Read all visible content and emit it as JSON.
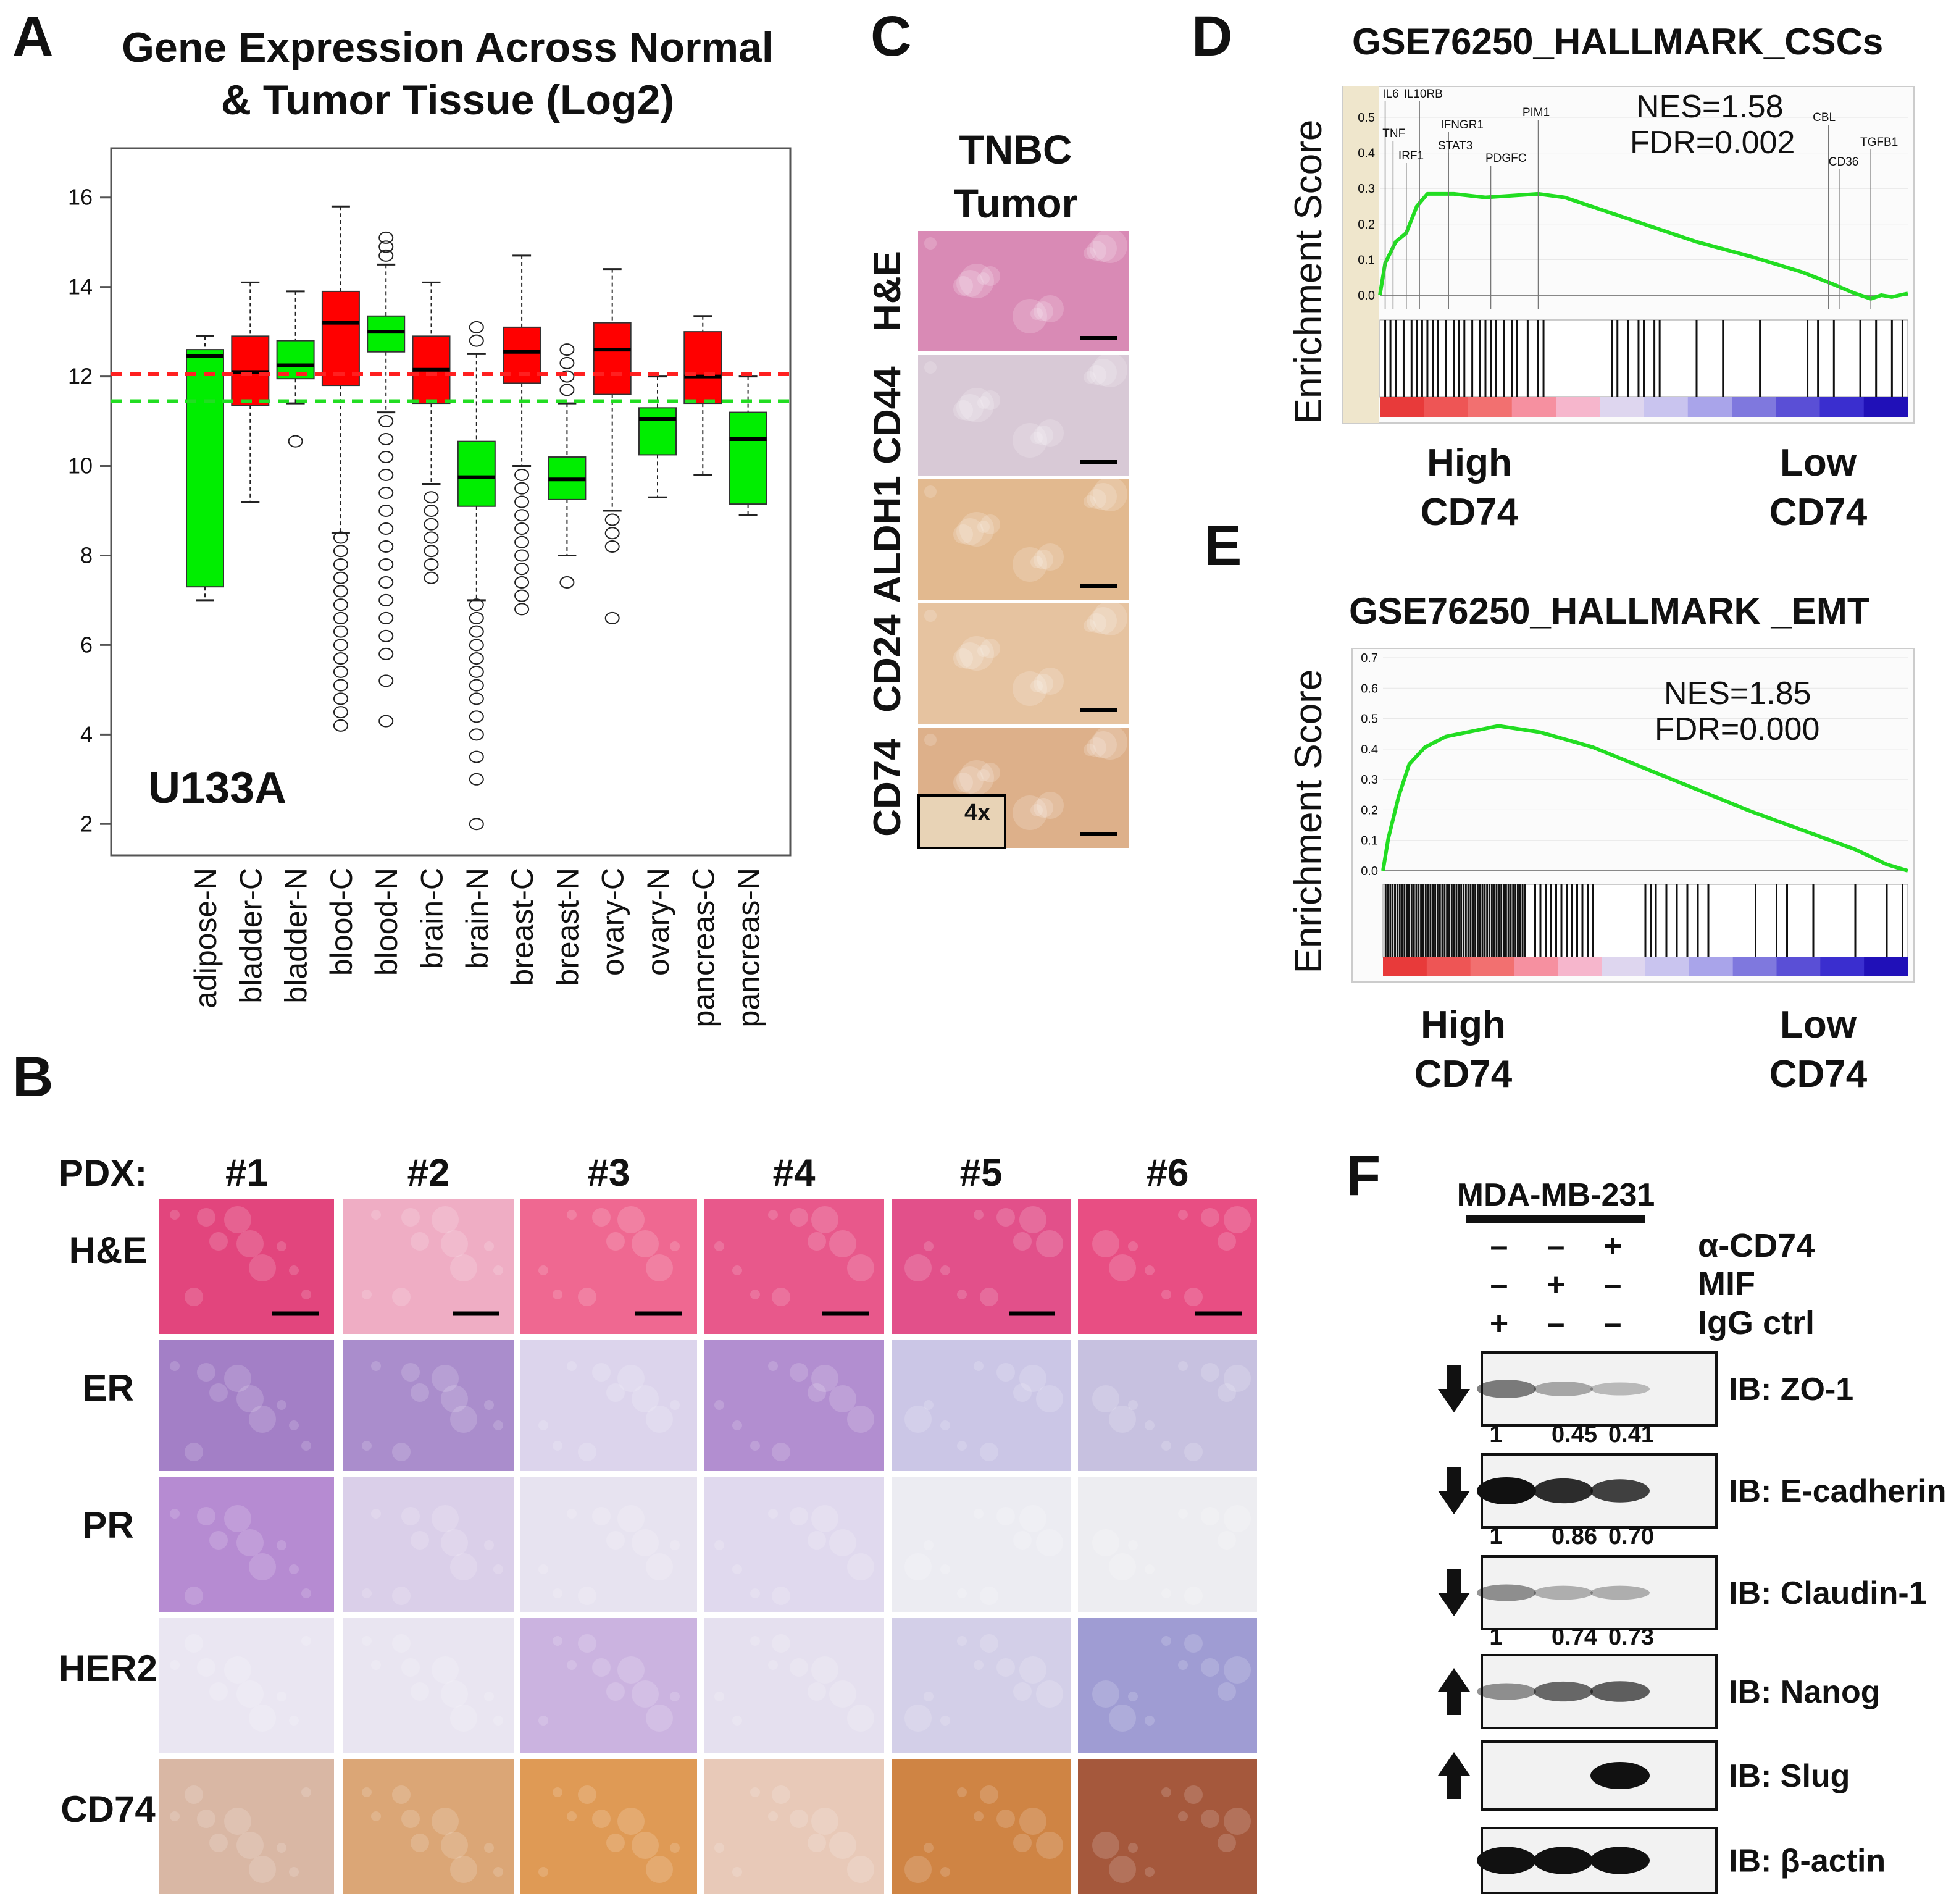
{
  "panel_letters": {
    "a": "A",
    "b": "B",
    "c": "C",
    "d": "D",
    "e": "E",
    "f": "F"
  },
  "panel_a": {
    "title_line1": "Gene Expression Across Normal",
    "title_line2": "& Tumor Tissue (Log2)",
    "platform": "U133A"
  },
  "panel_b": {
    "pdx_label": "PDX:",
    "columns": [
      "#1",
      "#2",
      "#3",
      "#4",
      "#5",
      "#6"
    ],
    "rows": [
      "H&E",
      "ER",
      "PR",
      "HER2",
      "CD74"
    ],
    "colors": {
      "H&E": [
        "#e2457d",
        "#efadc4",
        "#ef6891",
        "#e8588b",
        "#e2508a",
        "#e84e83"
      ],
      "ER": [
        "#a37fc6",
        "#aa8dcc",
        "#dcd4ec",
        "#b28ed0",
        "#cbc6e6",
        "#c7c1e0"
      ],
      "PR": [
        "#b68bd2",
        "#dacfe9",
        "#e7e3f0",
        "#e0d9ee",
        "#ececf2",
        "#ededf1"
      ],
      "HER2": [
        "#eae6f2",
        "#e9e5f1",
        "#cbb3e0",
        "#e5e0ef",
        "#d3cfe8",
        "#9f9cd3"
      ],
      "CD74": [
        "#d9b7a4",
        "#dba676",
        "#df9a55",
        "#e8c9b8",
        "#cf8444",
        "#a5583c"
      ]
    }
  },
  "panel_c": {
    "header_line1": "TNBC",
    "header_line2": "Tumor",
    "rows": [
      "H&E",
      "CD44",
      "ALDH1",
      "CD24",
      "CD74"
    ],
    "colors": [
      "#d98ab5",
      "#d8c9d6",
      "#e2b98f",
      "#e6c3a0",
      "#ddb08a"
    ],
    "inset_label": "4x"
  },
  "panel_d": {
    "title": "GSE76250_HALLMARK_CSCs",
    "ylabel": "Enrichment Score",
    "nes": "NES=1.58",
    "fdr": "FDR=0.002",
    "yticks": [
      "0.5",
      "0.4",
      "0.3",
      "0.2",
      "0.1",
      "0.0"
    ],
    "genes": [
      "IL6",
      "IL10RB",
      "TNF",
      "IRF1",
      "IFNGR1",
      "STAT3",
      "PDGFC",
      "PIM1",
      "CBL",
      "TGFB1",
      "CD36"
    ],
    "high_line1": "High",
    "high_line2": "CD74",
    "low_line1": "Low",
    "low_line2": "CD74"
  },
  "panel_e": {
    "title": "GSE76250_HALLMARK _EMT",
    "ylabel": "Enrichment Score",
    "nes": "NES=1.85",
    "fdr": "FDR=0.000",
    "yticks": [
      "0.7",
      "0.6",
      "0.5",
      "0.4",
      "0.3",
      "0.2",
      "0.1",
      "0.0"
    ],
    "high_line1": "High",
    "high_line2": "CD74",
    "low_line1": "Low",
    "low_line2": "CD74"
  },
  "panel_f": {
    "cell_line": "MDA-MB-231",
    "conditions": [
      {
        "label": "α-CD74",
        "signs": [
          "–",
          "–",
          "+"
        ]
      },
      {
        "label": "MIF",
        "signs": [
          "–",
          "+",
          "–"
        ]
      },
      {
        "label": "IgG ctrl",
        "signs": [
          "+",
          "–",
          "–"
        ]
      }
    ],
    "blots": [
      {
        "label": "IB: ZO-1",
        "direction": "down",
        "quant": [
          "1",
          "0.45",
          "0.41"
        ],
        "intensity": [
          0.45,
          0.22,
          0.12
        ]
      },
      {
        "label": "IB: E-cadherin",
        "direction": "down",
        "quant": [
          "1",
          "0.86",
          "0.70"
        ],
        "intensity": [
          1.0,
          0.86,
          0.75
        ]
      },
      {
        "label": "IB: Claudin-1",
        "direction": "down",
        "quant": [
          "1",
          "0.74",
          "0.73"
        ],
        "intensity": [
          0.35,
          0.18,
          0.18
        ]
      },
      {
        "label": "IB: Nanog",
        "direction": "up",
        "quant": [],
        "intensity": [
          0.35,
          0.55,
          0.6
        ]
      },
      {
        "label": "IB: Slug",
        "direction": "up",
        "quant": [],
        "intensity": [
          0.0,
          0.0,
          1.0
        ]
      },
      {
        "label": "IB: β-actin",
        "direction": "",
        "quant": [],
        "intensity": [
          1.0,
          1.0,
          1.0
        ]
      }
    ]
  },
  "chart_data": {
    "type": "box",
    "title": "Gene Expression Across Normal & Tumor Tissue (Log2)",
    "subtitle": "U133A",
    "xlabel": "",
    "ylabel": "",
    "ylim": [
      1.3,
      17.1
    ],
    "yticks": [
      2,
      4,
      6,
      8,
      10,
      12,
      14,
      16
    ],
    "reference_lines": [
      {
        "value": 12.05,
        "color": "#ff2020",
        "style": "dashed"
      },
      {
        "value": 11.45,
        "color": "#22dd22",
        "style": "dashed"
      }
    ],
    "categories": [
      "adipose-N",
      "bladder-C",
      "bladder-N",
      "blood-C",
      "blood-N",
      "brain-C",
      "brain-N",
      "breast-C",
      "breast-N",
      "ovary-C",
      "ovary-N",
      "pancreas-C",
      "pancreas-N"
    ],
    "series": [
      {
        "name": "adipose-N",
        "color": "#00ee00",
        "whisker_low": 7.0,
        "q1": 7.3,
        "median": 12.45,
        "q3": 12.6,
        "whisker_high": 12.9,
        "outliers": []
      },
      {
        "name": "bladder-C",
        "color": "#ff0000",
        "whisker_low": 9.2,
        "q1": 11.35,
        "median": 12.1,
        "q3": 12.9,
        "whisker_high": 14.1,
        "outliers": []
      },
      {
        "name": "bladder-N",
        "color": "#00ee00",
        "whisker_low": 11.4,
        "q1": 11.95,
        "median": 12.25,
        "q3": 12.8,
        "whisker_high": 13.9,
        "outliers": [
          10.55
        ]
      },
      {
        "name": "blood-C",
        "color": "#ff0000",
        "whisker_low": 8.5,
        "q1": 11.8,
        "median": 13.2,
        "q3": 13.9,
        "whisker_high": 15.8,
        "outliers": [
          8.4,
          8.1,
          7.8,
          7.5,
          7.2,
          6.9,
          6.6,
          6.3,
          6.0,
          5.7,
          5.4,
          5.1,
          4.8,
          4.5,
          4.2
        ]
      },
      {
        "name": "blood-N",
        "color": "#00ee00",
        "whisker_low": 11.2,
        "q1": 12.55,
        "median": 13.0,
        "q3": 13.35,
        "whisker_high": 14.5,
        "outliers": [
          15.1,
          14.9,
          14.7,
          11.0,
          10.6,
          10.2,
          9.8,
          9.4,
          9.0,
          8.6,
          8.2,
          7.8,
          7.4,
          7.0,
          6.6,
          6.2,
          5.8,
          5.2,
          4.3
        ]
      },
      {
        "name": "brain-C",
        "color": "#ff0000",
        "whisker_low": 9.6,
        "q1": 11.4,
        "median": 12.15,
        "q3": 12.9,
        "whisker_high": 14.1,
        "outliers": [
          9.3,
          9.0,
          8.7,
          8.4,
          8.1,
          7.8,
          7.5
        ]
      },
      {
        "name": "brain-N",
        "color": "#00ee00",
        "whisker_low": 7.0,
        "q1": 9.1,
        "median": 9.75,
        "q3": 10.55,
        "whisker_high": 12.5,
        "outliers": [
          13.1,
          12.8,
          6.9,
          6.6,
          6.3,
          6.0,
          5.7,
          5.4,
          5.1,
          4.8,
          4.4,
          4.0,
          3.5,
          3.0,
          2.0
        ]
      },
      {
        "name": "breast-C",
        "color": "#ff0000",
        "whisker_low": 10.0,
        "q1": 11.85,
        "median": 12.55,
        "q3": 13.1,
        "whisker_high": 14.7,
        "outliers": [
          9.8,
          9.5,
          9.2,
          8.9,
          8.6,
          8.3,
          8.0,
          7.7,
          7.4,
          7.1,
          6.8
        ]
      },
      {
        "name": "breast-N",
        "color": "#00ee00",
        "whisker_low": 8.0,
        "q1": 9.25,
        "median": 9.7,
        "q3": 10.2,
        "whisker_high": 11.4,
        "outliers": [
          12.6,
          12.3,
          12.0,
          11.7,
          7.4
        ]
      },
      {
        "name": "ovary-C",
        "color": "#ff0000",
        "whisker_low": 9.0,
        "q1": 11.6,
        "median": 12.6,
        "q3": 13.2,
        "whisker_high": 14.4,
        "outliers": [
          8.8,
          8.5,
          8.2,
          6.6
        ]
      },
      {
        "name": "ovary-N",
        "color": "#00ee00",
        "whisker_low": 9.3,
        "q1": 10.25,
        "median": 11.05,
        "q3": 11.3,
        "whisker_high": 12.0,
        "outliers": []
      },
      {
        "name": "pancreas-C",
        "color": "#ff0000",
        "whisker_low": 9.8,
        "q1": 11.4,
        "median": 12.0,
        "q3": 13.0,
        "whisker_high": 13.35,
        "outliers": []
      },
      {
        "name": "pancreas-N",
        "color": "#00ee00",
        "whisker_low": 8.9,
        "q1": 9.15,
        "median": 10.6,
        "q3": 11.2,
        "whisker_high": 12.0,
        "outliers": []
      }
    ]
  }
}
